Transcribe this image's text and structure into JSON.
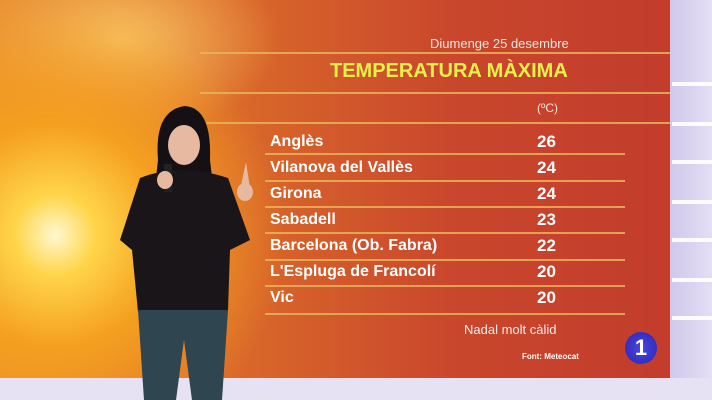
{
  "header": {
    "date": "Diumenge 25 desembre",
    "title": "TEMPERATURA MÀXIMA",
    "unit": "(ºC)"
  },
  "rows": [
    {
      "city": "Anglès",
      "temp": "26"
    },
    {
      "city": "Vilanova del Vallès",
      "temp": "24"
    },
    {
      "city": "Girona",
      "temp": "24"
    },
    {
      "city": "Sabadell",
      "temp": "23"
    },
    {
      "city": "Barcelona (Ob. Fabra)",
      "temp": "22"
    },
    {
      "city": "L'Espluga de Francolí",
      "temp": "20"
    },
    {
      "city": "Vic",
      "temp": "20"
    }
  ],
  "footer": {
    "note": "Nadal molt càlid",
    "source": "Font: Meteocat"
  },
  "channel_logo": "1",
  "colors": {
    "title": "#e6f04a",
    "panel": "#c9472c"
  }
}
